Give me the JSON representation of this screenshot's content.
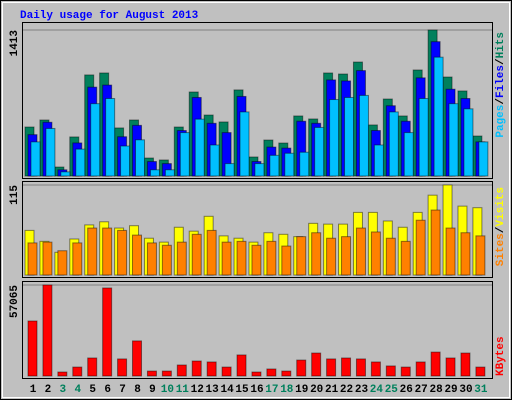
{
  "chart_data": [
    {
      "type": "bar",
      "title": "Daily usage for August 2013",
      "ylim": [
        0,
        1413
      ],
      "yticks": [
        1413
      ],
      "legend_separator": "/",
      "series": [
        {
          "name": "Pages",
          "color": "#00c0ff",
          "values": [
            330,
            460,
            40,
            260,
            700,
            750,
            290,
            350,
            60,
            60,
            420,
            550,
            300,
            120,
            620,
            120,
            200,
            220,
            230,
            470,
            740,
            760,
            780,
            300,
            620,
            420,
            750,
            1150,
            700,
            650,
            330
          ]
        },
        {
          "name": "Files",
          "color": "#0000ff",
          "values": [
            400,
            520,
            60,
            320,
            860,
            880,
            380,
            490,
            140,
            120,
            440,
            760,
            510,
            420,
            770,
            140,
            280,
            270,
            530,
            510,
            930,
            920,
            1020,
            440,
            680,
            530,
            950,
            1300,
            840,
            750,
            330
          ]
        },
        {
          "name": "Hits",
          "color": "#00805c",
          "values": [
            474,
            542,
            87,
            378,
            978,
            997,
            465,
            542,
            174,
            155,
            474,
            813,
            590,
            523,
            833,
            184,
            348,
            319,
            581,
            552,
            997,
            987,
            1103,
            494,
            745,
            581,
            1026,
            1413,
            958,
            823,
            387
          ]
        }
      ]
    },
    {
      "type": "bar",
      "ylim": [
        0,
        115
      ],
      "yticks": [
        115
      ],
      "legend_separator": "/",
      "series": [
        {
          "name": "Sites",
          "color": "#ff8000",
          "values": [
            41,
            42,
            31,
            41,
            60,
            60,
            57,
            51,
            41,
            38,
            42,
            52,
            57,
            42,
            43,
            38,
            43,
            37,
            49,
            54,
            47,
            49,
            60,
            55,
            47,
            43,
            70,
            83,
            60,
            54,
            50
          ]
        },
        {
          "name": "Visits",
          "color": "#ffff00",
          "values": [
            57,
            43,
            29,
            46,
            64,
            68,
            60,
            63,
            47,
            42,
            61,
            56,
            75,
            50,
            47,
            42,
            54,
            52,
            49,
            66,
            65,
            65,
            80,
            80,
            69,
            61,
            80,
            102,
            115,
            88,
            86
          ]
        }
      ]
    },
    {
      "type": "bar",
      "ylim": [
        0,
        57065
      ],
      "yticks": [
        57065
      ],
      "categories": [
        "1",
        "2",
        "3",
        "4",
        "5",
        "6",
        "7",
        "8",
        "9",
        "10",
        "11",
        "12",
        "13",
        "14",
        "15",
        "16",
        "17",
        "18",
        "19",
        "20",
        "21",
        "22",
        "23",
        "24",
        "25",
        "26",
        "27",
        "28",
        "29",
        "30",
        "31"
      ],
      "category_colors": [
        "#000000",
        "#000000",
        "#00805c",
        "#00805c",
        "#000000",
        "#000000",
        "#000000",
        "#000000",
        "#000000",
        "#00805c",
        "#00805c",
        "#000000",
        "#000000",
        "#000000",
        "#000000",
        "#000000",
        "#00805c",
        "#00805c",
        "#000000",
        "#000000",
        "#000000",
        "#000000",
        "#000000",
        "#00805c",
        "#00805c",
        "#000000",
        "#000000",
        "#000000",
        "#000000",
        "#000000",
        "#00805c"
      ],
      "series": [
        {
          "name": "KBytes",
          "color": "#ff0000",
          "values": [
            34490,
            57065,
            2500,
            5600,
            11300,
            55200,
            10700,
            22000,
            3100,
            3100,
            6900,
            9400,
            8800,
            5600,
            13200,
            2500,
            4400,
            3100,
            10000,
            14400,
            10700,
            11300,
            10700,
            8800,
            6300,
            5600,
            8800,
            15000,
            11300,
            14400,
            5600
          ]
        }
      ]
    }
  ]
}
